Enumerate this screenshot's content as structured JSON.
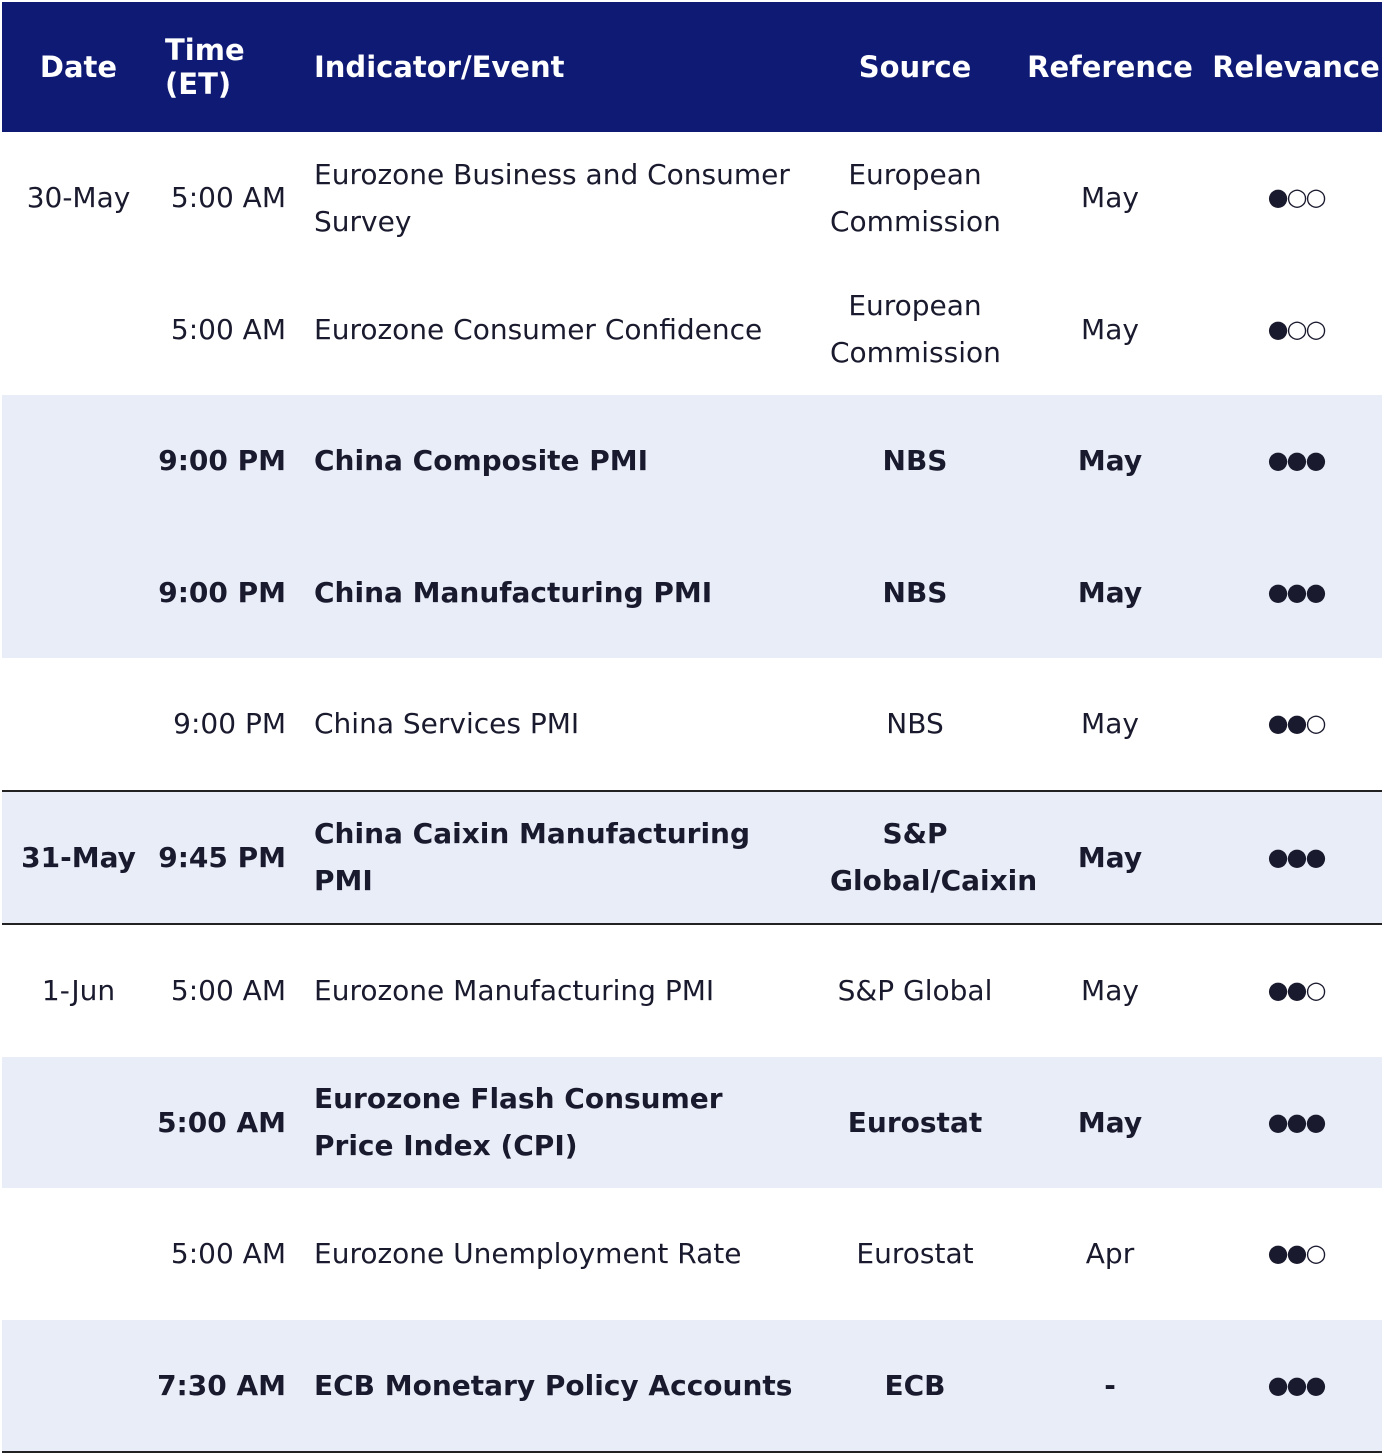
{
  "table": {
    "header": [
      "Date",
      "Time (ET)",
      "Indicator/Event",
      "Source",
      "Reference",
      "Relevance"
    ],
    "rows": [
      {
        "date": "30-May",
        "time": "5:00 AM",
        "event": "Eurozone Business and Consumer Survey",
        "source": "European Commission",
        "reference": "May",
        "relevance": "●○○"
      },
      {
        "time": "5:00 AM",
        "event": "Eurozone Consumer Confidence",
        "source": "European Commission",
        "reference": "May",
        "relevance": "●○○"
      },
      {
        "time": "9:00 PM",
        "event": "China Composite PMI",
        "source": "NBS",
        "reference": "May",
        "relevance": "●●●"
      },
      {
        "time": "9:00 PM",
        "event": "China Manufacturing PMI",
        "source": "NBS",
        "reference": "May",
        "relevance": "●●●"
      },
      {
        "time": "9:00 PM",
        "event": "China Services PMI",
        "source": "NBS",
        "reference": "May",
        "relevance": "●●○"
      },
      {
        "date": "31-May",
        "time": "9:45 PM",
        "event": "China Caixin Manufacturing PMI",
        "source": "S&P Global/Caixin",
        "reference": "May",
        "relevance": "●●●"
      },
      {
        "date": "1-Jun",
        "time": "5:00 AM",
        "event": "Eurozone Manufacturing PMI",
        "source": "S&P Global",
        "reference": "May",
        "relevance": "●●○"
      },
      {
        "time": "5:00 AM",
        "event": "Eurozone Flash Consumer Price Index (CPI)",
        "source": "Eurostat",
        "reference": "May",
        "relevance": "●●●"
      },
      {
        "time": "5:00 AM",
        "event": "Eurozone Unemployment Rate",
        "source": "Eurostat",
        "reference": "Apr",
        "relevance": "●●○"
      },
      {
        "time": "7:30 AM",
        "event": "ECB Monetary Policy Accounts",
        "source": "ECB",
        "reference": "-",
        "relevance": "●●●"
      }
    ]
  }
}
